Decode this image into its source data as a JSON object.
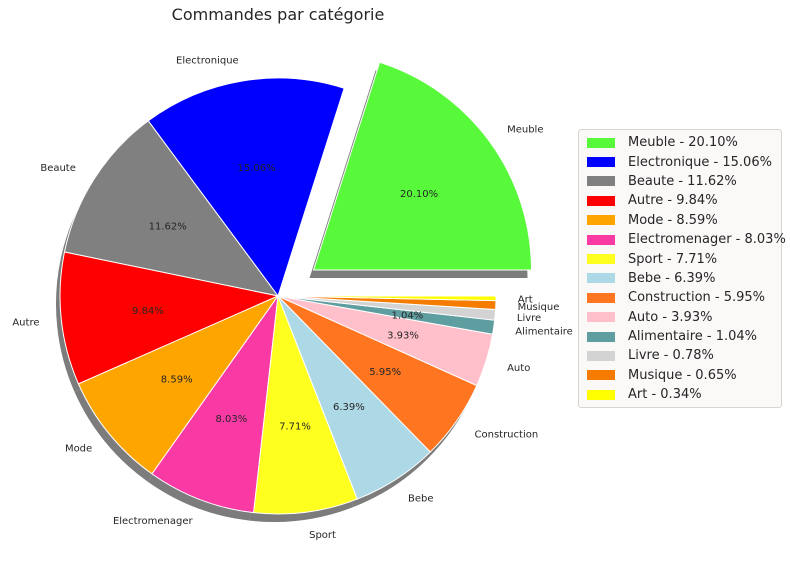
{
  "chart_data": {
    "type": "pie",
    "title": "Commandes par catégorie",
    "legend_position": "right",
    "shadow": true,
    "exploded": [
      "Meuble"
    ],
    "slices": [
      {
        "label": "Meuble",
        "value": 20.1,
        "pct_text": "20.10%",
        "legend": "Meuble - 20.10%",
        "color": "#58f93a"
      },
      {
        "label": "Electronique",
        "value": 15.06,
        "pct_text": "15.06%",
        "legend": "Electronique - 15.06%",
        "color": "#0000ff"
      },
      {
        "label": "Beaute",
        "value": 11.62,
        "pct_text": "11.62%",
        "legend": "Beaute - 11.62%",
        "color": "#808080"
      },
      {
        "label": "Autre",
        "value": 9.84,
        "pct_text": "9.84%",
        "legend": "Autre - 9.84%",
        "color": "#ff0000"
      },
      {
        "label": "Mode",
        "value": 8.59,
        "pct_text": "8.59%",
        "legend": "Mode - 8.59%",
        "color": "#ffa500"
      },
      {
        "label": "Electromenager",
        "value": 8.03,
        "pct_text": "8.03%",
        "legend": "Electromenager - 8.03%",
        "color": "#f93aa5"
      },
      {
        "label": "Sport",
        "value": 7.71,
        "pct_text": "7.71%",
        "legend": "Sport - 7.71%",
        "color": "#ffff1f"
      },
      {
        "label": "Bebe",
        "value": 6.39,
        "pct_text": "6.39%",
        "legend": "Bebe - 6.39%",
        "color": "#add8e6"
      },
      {
        "label": "Construction",
        "value": 5.95,
        "pct_text": "5.95%",
        "legend": "Construction - 5.95%",
        "color": "#ff7520"
      },
      {
        "label": "Auto",
        "value": 3.93,
        "pct_text": "3.93%",
        "legend": "Auto - 3.93%",
        "color": "#ffc0cb"
      },
      {
        "label": "Alimentaire",
        "value": 1.04,
        "pct_text": "1.04%",
        "legend": "Alimentaire - 1.04%",
        "color": "#5f9ea0"
      },
      {
        "label": "Livre",
        "value": 0.78,
        "pct_text": "",
        "legend": "Livre - 0.78%",
        "color": "#d3d3d3"
      },
      {
        "label": "Musique",
        "value": 0.65,
        "pct_text": "",
        "legend": "Musique - 0.65%",
        "color": "#f57c00"
      },
      {
        "label": "Art",
        "value": 0.34,
        "pct_text": "",
        "legend": "Art - 0.34%",
        "color": "#ffff00"
      }
    ]
  }
}
